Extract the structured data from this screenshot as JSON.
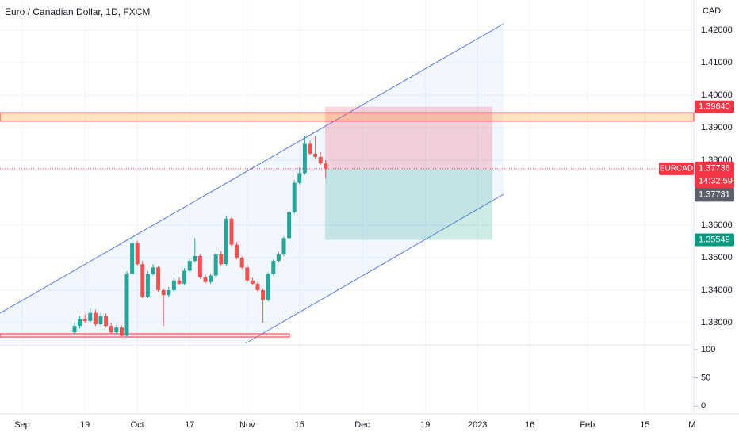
{
  "chart_data": {
    "type": "candlestick",
    "title": "Euro / Canadian Dollar, 1D, FXCM",
    "unit": "CAD",
    "up_color": "#26a69a",
    "down_color": "#ef5350",
    "x": [
      10,
      11,
      12,
      13,
      14,
      15,
      16,
      17,
      18,
      19,
      20,
      21,
      22,
      23,
      24,
      25,
      26,
      27,
      28,
      29,
      30,
      31,
      32,
      33,
      34,
      35,
      36,
      37,
      38,
      39,
      40,
      41,
      42,
      43,
      44,
      45,
      46,
      47,
      48,
      49,
      50,
      51,
      52,
      53,
      54,
      55,
      56,
      57,
      58
    ],
    "open": [
      1.327,
      1.329,
      1.331,
      1.3305,
      1.333,
      1.3295,
      1.332,
      1.329,
      1.327,
      1.3285,
      1.326,
      1.345,
      1.3545,
      1.348,
      1.338,
      1.345,
      1.347,
      1.34,
      1.3385,
      1.34,
      1.343,
      1.342,
      1.346,
      1.349,
      1.3505,
      1.344,
      1.3425,
      1.3445,
      1.351,
      1.348,
      1.362,
      1.354,
      1.35,
      1.347,
      1.343,
      1.342,
      1.34,
      1.337,
      1.345,
      1.349,
      1.351,
      1.356,
      1.364,
      1.373,
      1.376,
      1.385,
      1.382,
      1.381,
      1.379
    ],
    "high": [
      1.33,
      1.332,
      1.3325,
      1.3345,
      1.334,
      1.333,
      1.3328,
      1.3298,
      1.3292,
      1.329,
      1.3458,
      1.3565,
      1.3552,
      1.349,
      1.3458,
      1.348,
      1.3475,
      1.3405,
      1.341,
      1.3438,
      1.344,
      1.3468,
      1.3498,
      1.356,
      1.351,
      1.3448,
      1.345,
      1.3515,
      1.352,
      1.363,
      1.3625,
      1.3548,
      1.3505,
      1.3478,
      1.3438,
      1.3428,
      1.3405,
      1.3455,
      1.3495,
      1.3518,
      1.3565,
      1.3645,
      1.3738,
      1.3778,
      1.3875,
      1.386,
      1.3875,
      1.3825,
      1.38
    ],
    "low": [
      1.3262,
      1.3282,
      1.3298,
      1.33,
      1.329,
      1.329,
      1.3285,
      1.3265,
      1.3262,
      1.3255,
      1.3255,
      1.3445,
      1.3475,
      1.3375,
      1.3375,
      1.3445,
      1.3395,
      1.329,
      1.3378,
      1.3395,
      1.3415,
      1.3415,
      1.3455,
      1.3485,
      1.3435,
      1.342,
      1.342,
      1.344,
      1.3475,
      1.3475,
      1.3535,
      1.3495,
      1.3465,
      1.3425,
      1.3415,
      1.3395,
      1.33,
      1.3365,
      1.3445,
      1.3485,
      1.3505,
      1.3555,
      1.3635,
      1.3725,
      1.3755,
      1.3815,
      1.3805,
      1.3785,
      1.3745
    ],
    "close": [
      1.329,
      1.331,
      1.3305,
      1.333,
      1.3295,
      1.332,
      1.329,
      1.327,
      1.3285,
      1.326,
      1.345,
      1.3545,
      1.348,
      1.338,
      1.345,
      1.347,
      1.34,
      1.3385,
      1.34,
      1.343,
      1.342,
      1.346,
      1.349,
      1.3505,
      1.344,
      1.3425,
      1.3445,
      1.351,
      1.348,
      1.362,
      1.354,
      1.35,
      1.347,
      1.343,
      1.342,
      1.34,
      1.337,
      1.345,
      1.349,
      1.351,
      1.356,
      1.364,
      1.373,
      1.376,
      1.385,
      1.382,
      1.381,
      1.379,
      1.37736
    ],
    "xlim": [
      -4.24,
      128.33
    ],
    "xticks": [
      {
        "value": 0,
        "label": "Sep"
      },
      {
        "value": 12,
        "label": "19"
      },
      {
        "value": 22,
        "label": "Oct"
      },
      {
        "value": 32,
        "label": "17"
      },
      {
        "value": 43,
        "label": "Nov"
      },
      {
        "value": 53,
        "label": "15"
      },
      {
        "value": 65,
        "label": "Dec"
      },
      {
        "value": 77,
        "label": "19"
      },
      {
        "value": 87,
        "label": "2023"
      },
      {
        "value": 97,
        "label": "16"
      },
      {
        "value": 108,
        "label": "Feb"
      },
      {
        "value": 119,
        "label": "15"
      },
      {
        "value": 128,
        "label": "M"
      }
    ],
    "ylim": [
      1.32317,
      1.42927
    ],
    "yticks": [
      {
        "value": 1.42,
        "label": "1.42000"
      },
      {
        "value": 1.41,
        "label": "1.41000"
      },
      {
        "value": 1.4,
        "label": "1.40000"
      },
      {
        "value": 1.39,
        "label": "1.39000"
      },
      {
        "value": 1.38,
        "label": "1.38000"
      },
      {
        "value": 1.36,
        "label": "1.36000"
      },
      {
        "value": 1.35,
        "label": "1.35000"
      },
      {
        "value": 1.34,
        "label": "1.34000"
      },
      {
        "value": 1.33,
        "label": "1.33000"
      }
    ],
    "volume_lim": [
      -11,
      108.5
    ],
    "volume_ticks": [
      100,
      50,
      0
    ],
    "resistance_zone": [
      1.392,
      1.3946
    ],
    "support_zone": [
      1.3256,
      1.3266
    ],
    "stop": {
      "value": 1.3964,
      "label": "1.39640"
    },
    "last_price": {
      "symbol": "EURCAD",
      "value": 1.37736,
      "label": "1.37736",
      "countdown": "14:32:59"
    },
    "bid": {
      "value": 1.37731,
      "label": "1.37731"
    },
    "target": {
      "value": 1.35549,
      "label": "1.35549"
    }
  }
}
